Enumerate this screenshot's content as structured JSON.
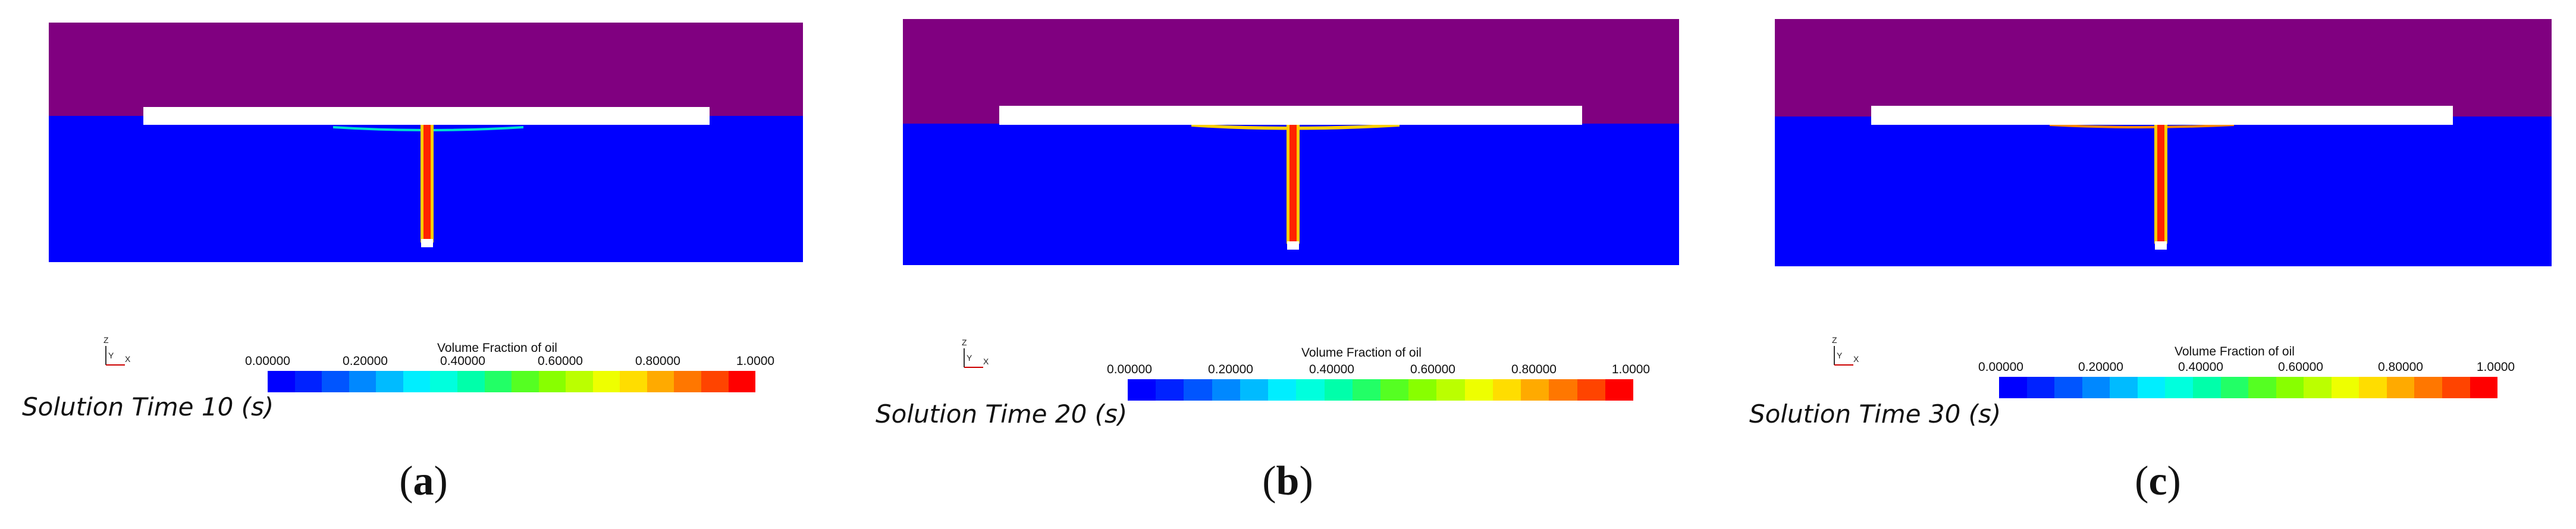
{
  "colors": {
    "air": "#800080",
    "water": "#0000ff",
    "plate": "#ffffff",
    "oil_core": "#ff2200",
    "oil_edge": "#ffd000"
  },
  "colorbar": {
    "title": "Volume Fraction of oil",
    "ticks": [
      "0.00000",
      "0.20000",
      "0.40000",
      "0.60000",
      "0.80000",
      "1.0000"
    ],
    "stops": [
      "#0000ff",
      "#0022ff",
      "#0055ff",
      "#0088ff",
      "#00bbff",
      "#00eeff",
      "#00ffdd",
      "#00ffaa",
      "#22ff66",
      "#55ff22",
      "#88ff00",
      "#bbff00",
      "#eeff00",
      "#ffdd00",
      "#ffaa00",
      "#ff7700",
      "#ff4400",
      "#ff0000"
    ]
  },
  "axis_triad": {
    "x": "X",
    "y": "Y",
    "z": "Z"
  },
  "panels": [
    {
      "label": "a",
      "solution_time": "Solution Time 10 (s)"
    },
    {
      "label": "b",
      "solution_time": "Solution Time 20 (s)"
    },
    {
      "label": "c",
      "solution_time": "Solution Time 30 (s)"
    }
  ]
}
